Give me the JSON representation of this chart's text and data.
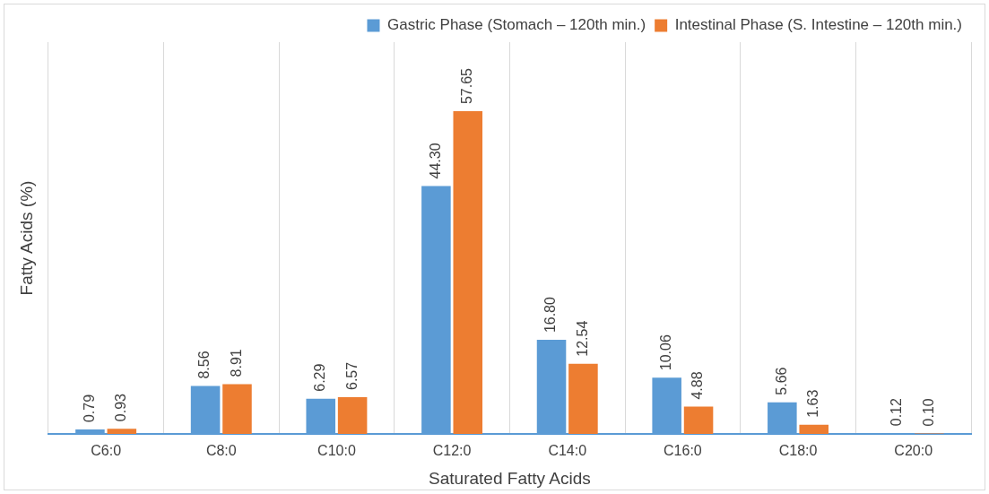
{
  "chart_data": {
    "type": "bar",
    "xlabel": "Saturated Fatty Acids",
    "ylabel": "Fatty Acids (%)",
    "categories": [
      "C6:0",
      "C8:0",
      "C10:0",
      "C12:0",
      "C14:0",
      "C16:0",
      "C18:0",
      "C20:0"
    ],
    "series": [
      {
        "name": "Gastric Phase (Stomach – 120th min.)",
        "color": "#5b9bd5",
        "values": [
          0.79,
          8.56,
          6.29,
          44.3,
          16.8,
          10.06,
          5.66,
          0.12
        ],
        "value_labels": [
          "0.79",
          "8.56",
          "6.29",
          "44.30",
          "16.80",
          "10.06",
          "5.66",
          "0.12"
        ]
      },
      {
        "name": "Intestinal Phase (S. Intestine – 120th min.)",
        "color": "#ed7d31",
        "values": [
          0.93,
          8.91,
          6.57,
          57.65,
          12.54,
          4.88,
          1.63,
          0.1
        ],
        "value_labels": [
          "0.93",
          "8.91",
          "6.57",
          "57.65",
          "12.54",
          "4.88",
          "1.63",
          "0.10"
        ]
      }
    ],
    "grid": "x",
    "legend": "top right"
  }
}
